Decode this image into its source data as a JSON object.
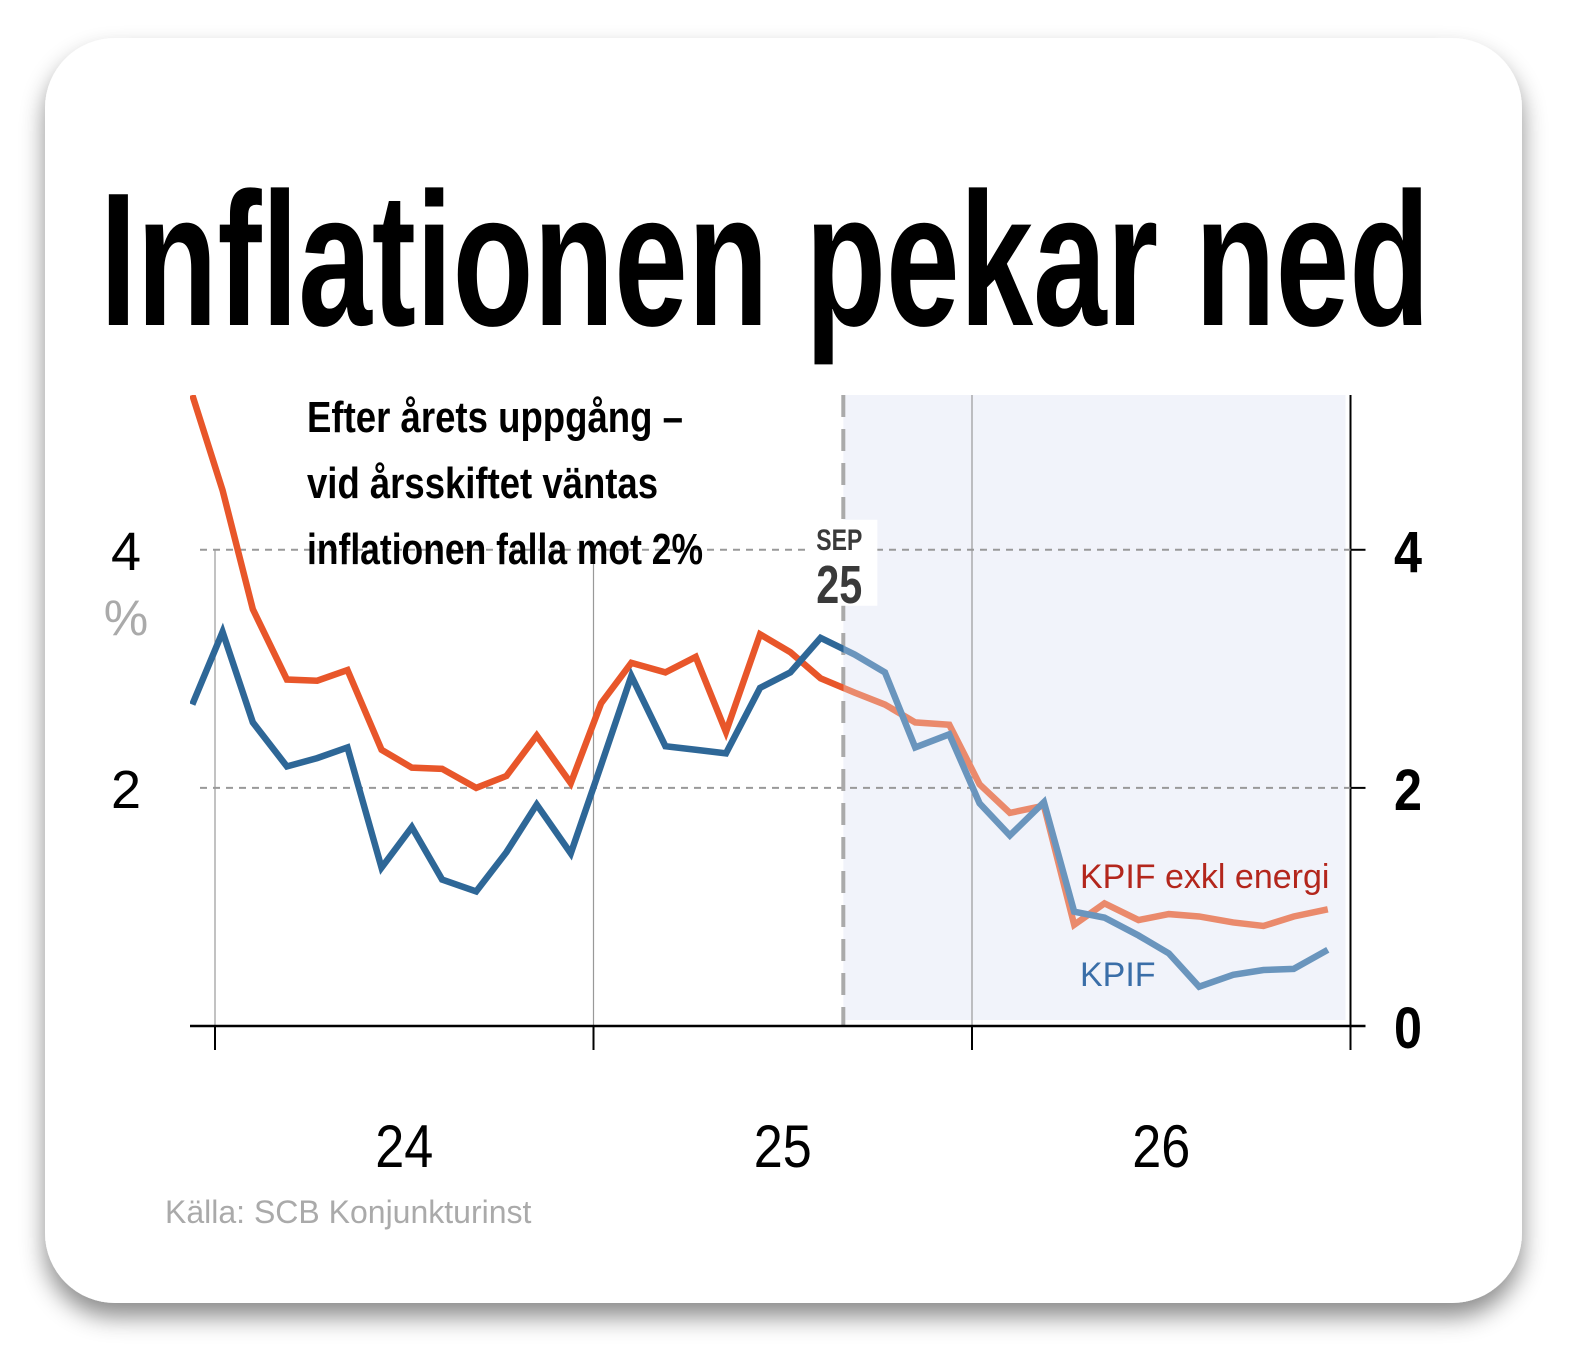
{
  "chart_data": {
    "type": "line",
    "title": "Inflationen pekar ned",
    "annotation": [
      "Efter årets uppgång –",
      "vid årsskiftet väntas",
      "inflationen falla mot 2%"
    ],
    "forecast_start": 25.66,
    "forecast_label": [
      "SEP",
      "25"
    ],
    "y_unit": "%",
    "source": "Källa: SCB Konjunkturinst",
    "xlim": [
      23.92,
      27.04
    ],
    "xgrid": [
      24,
      25,
      26,
      27
    ],
    "xticks": [
      {
        "value": 24.5,
        "label": "24"
      },
      {
        "value": 25.5,
        "label": "25"
      },
      {
        "value": 26.5,
        "label": "26"
      }
    ],
    "ylim": [
      0,
      5.3
    ],
    "left_yticks": [
      2,
      4
    ],
    "right_yticks": [
      0,
      2,
      4
    ],
    "grid": true,
    "x": [
      23.94,
      24.02,
      24.1,
      24.19,
      24.27,
      24.35,
      24.44,
      24.52,
      24.6,
      24.69,
      24.77,
      24.85,
      24.94,
      25.02,
      25.1,
      25.19,
      25.27,
      25.35,
      25.44,
      25.52,
      25.6,
      25.69,
      25.77,
      25.85,
      25.94,
      26.02,
      26.1,
      26.19,
      26.27,
      26.35,
      26.44,
      26.52,
      26.6,
      26.69,
      26.77,
      26.85,
      26.94
    ],
    "series": [
      {
        "name": "KPIF exkl energi",
        "color": "#e8562a",
        "forecast_color": "#ea8a6c",
        "label_color": "#b3261c",
        "values": [
          5.3,
          4.5,
          3.5,
          2.91,
          2.9,
          2.99,
          2.32,
          2.17,
          2.16,
          2.0,
          2.1,
          2.44,
          2.04,
          2.71,
          3.05,
          2.97,
          3.1,
          2.47,
          3.29,
          3.14,
          2.92,
          2.8,
          2.7,
          2.55,
          2.53,
          2.03,
          1.79,
          1.85,
          0.85,
          1.03,
          0.89,
          0.94,
          0.92,
          0.87,
          0.84,
          0.92,
          0.98
        ]
      },
      {
        "name": "KPIF",
        "color": "#2e6797",
        "forecast_color": "#6a95bd",
        "label_color": "#3a6ea8",
        "values": [
          2.7,
          3.31,
          2.55,
          2.18,
          2.25,
          2.34,
          1.33,
          1.67,
          1.23,
          1.13,
          1.46,
          1.86,
          1.45,
          2.19,
          2.94,
          2.35,
          2.32,
          2.29,
          2.84,
          2.97,
          3.26,
          3.12,
          2.97,
          2.34,
          2.45,
          1.87,
          1.6,
          1.88,
          0.96,
          0.91,
          0.76,
          0.61,
          0.33,
          0.43,
          0.47,
          0.48,
          0.64
        ]
      }
    ]
  }
}
